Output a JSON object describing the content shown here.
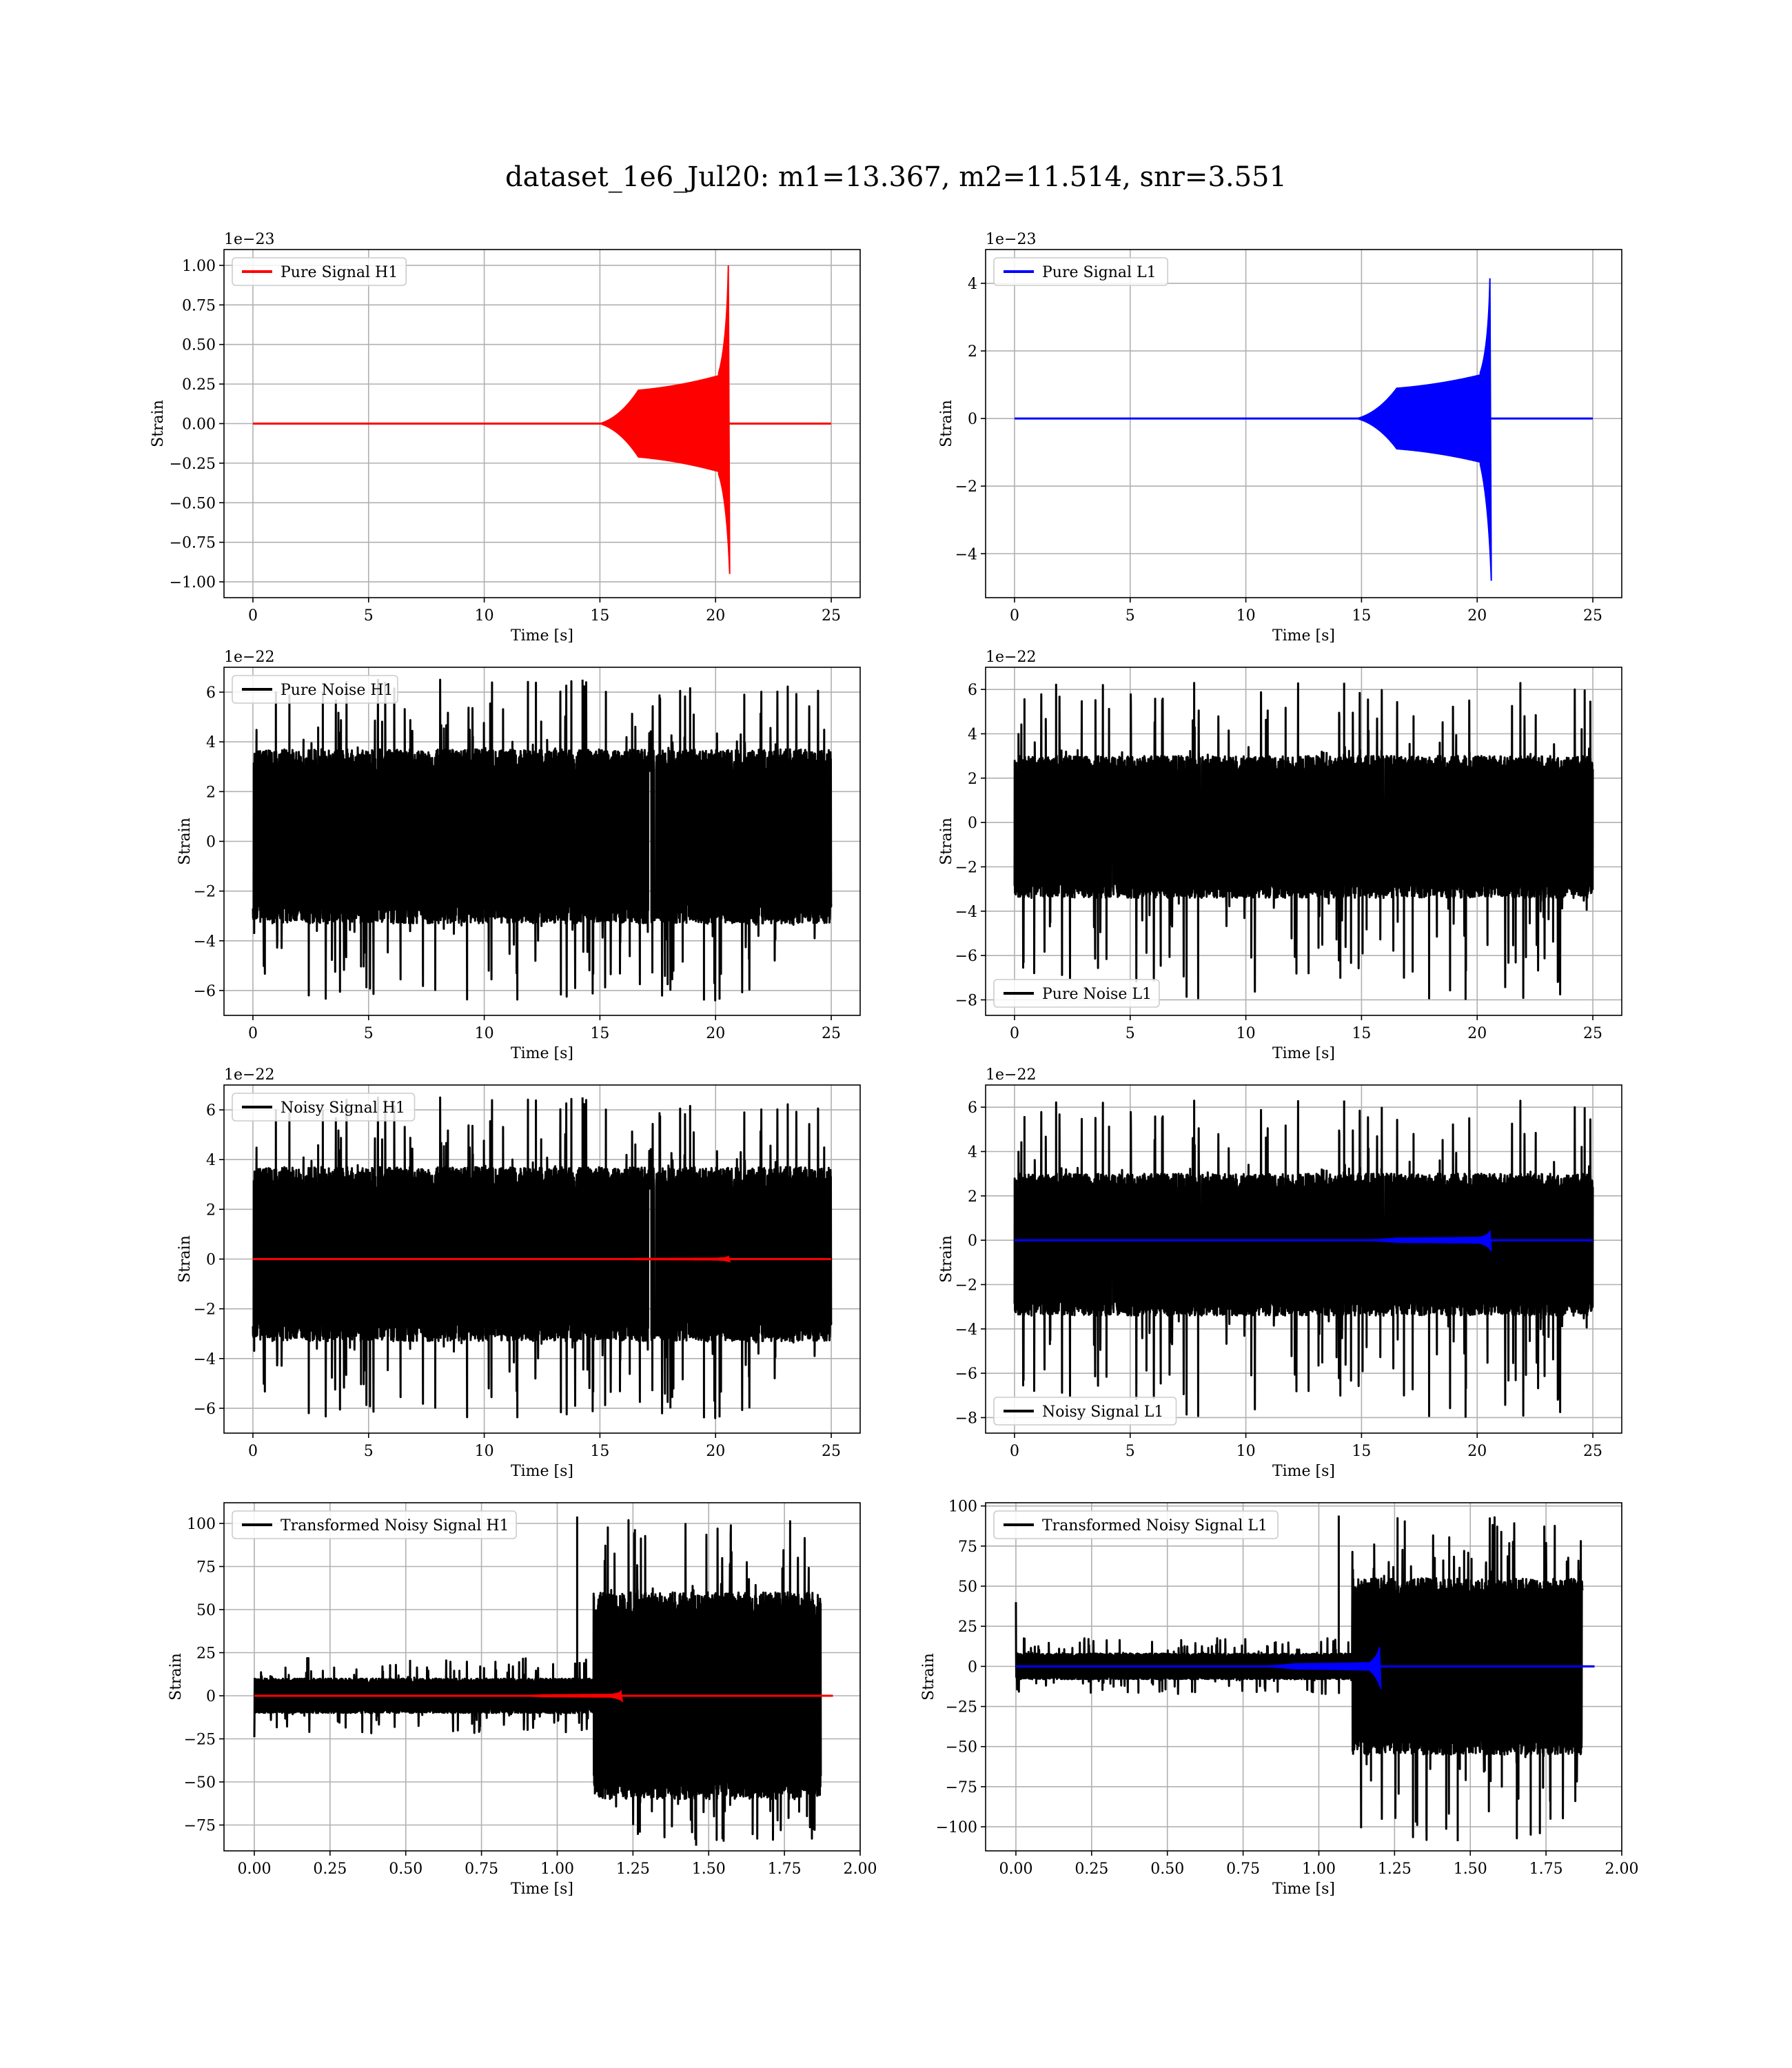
{
  "figure": {
    "title": "dataset_1e6_Jul20: m1=13.367, m2=11.514, snr=3.551"
  },
  "chart_data": [
    {
      "id": "pure-signal-h1",
      "type": "line",
      "xlabel": "Time [s]",
      "ylabel": "Strain",
      "offset_label": "1e−23",
      "xlim": [
        -1.25,
        26.25
      ],
      "ylim": [
        -1.1,
        1.1
      ],
      "xticks": [
        0,
        5,
        10,
        15,
        20,
        25
      ],
      "xtick_labels": [
        "0",
        "5",
        "10",
        "15",
        "20",
        "25"
      ],
      "yticks": [
        1.0,
        0.75,
        0.5,
        0.25,
        0.0,
        -0.25,
        -0.5,
        -0.75,
        -1.0
      ],
      "ytick_labels": [
        "1.00",
        "0.75",
        "0.50",
        "0.25",
        "0.00",
        "−0.25",
        "−0.50",
        "−0.75",
        "−1.00"
      ],
      "grid": true,
      "legend": {
        "position": "upper left"
      },
      "series": [
        {
          "name": "Pure Signal H1",
          "color": "#ff0000",
          "kind": "chirp",
          "t_start": 0,
          "t_end": 25,
          "t_merger": 20.55,
          "onset": 15.0,
          "plateau": 0.2,
          "peak_pos": 1.0,
          "peak_neg": -0.95
        }
      ]
    },
    {
      "id": "pure-signal-l1",
      "type": "line",
      "xlabel": "Time [s]",
      "ylabel": "Strain",
      "offset_label": "1e−23",
      "xlim": [
        -1.25,
        26.25
      ],
      "ylim": [
        -5.3,
        5.0
      ],
      "xticks": [
        0,
        5,
        10,
        15,
        20,
        25
      ],
      "xtick_labels": [
        "0",
        "5",
        "10",
        "15",
        "20",
        "25"
      ],
      "yticks": [
        4,
        2,
        0,
        -2,
        -4
      ],
      "ytick_labels": [
        "4",
        "2",
        "0",
        "−2",
        "−4"
      ],
      "grid": true,
      "legend": {
        "position": "upper left"
      },
      "series": [
        {
          "name": "Pure Signal L1",
          "color": "#0000ff",
          "kind": "chirp",
          "t_start": 0,
          "t_end": 25,
          "t_merger": 20.55,
          "onset": 14.8,
          "plateau": 0.85,
          "peak_pos": 4.15,
          "peak_neg": -4.8
        }
      ]
    },
    {
      "id": "pure-noise-h1",
      "type": "line",
      "xlabel": "Time [s]",
      "ylabel": "Strain",
      "offset_label": "1e−22",
      "xlim": [
        -1.25,
        26.25
      ],
      "ylim": [
        -7.0,
        7.0
      ],
      "xticks": [
        0,
        5,
        10,
        15,
        20,
        25
      ],
      "xtick_labels": [
        "0",
        "5",
        "10",
        "15",
        "20",
        "25"
      ],
      "yticks": [
        6,
        4,
        2,
        0,
        -2,
        -4,
        -6
      ],
      "ytick_labels": [
        "6",
        "4",
        "2",
        "0",
        "−2",
        "−4",
        "−6"
      ],
      "grid": true,
      "legend": {
        "position": "upper left"
      },
      "series": [
        {
          "name": "Pure Noise H1",
          "color": "#000000",
          "kind": "noise",
          "t_start": 0,
          "t_end": 25,
          "band": [
            -3.3,
            3.7
          ],
          "spike_max": 6.5,
          "spike_min": -6.4,
          "seed": 11
        }
      ]
    },
    {
      "id": "pure-noise-l1",
      "type": "line",
      "xlabel": "Time [s]",
      "ylabel": "Strain",
      "offset_label": "1e−22",
      "xlim": [
        -1.25,
        26.25
      ],
      "ylim": [
        -8.7,
        7.0
      ],
      "xticks": [
        0,
        5,
        10,
        15,
        20,
        25
      ],
      "xtick_labels": [
        "0",
        "5",
        "10",
        "15",
        "20",
        "25"
      ],
      "yticks": [
        6,
        4,
        2,
        0,
        -2,
        -4,
        -6,
        -8
      ],
      "ytick_labels": [
        "6",
        "4",
        "2",
        "0",
        "−2",
        "−4",
        "−6",
        "−8"
      ],
      "grid": true,
      "legend": {
        "position": "lower left"
      },
      "series": [
        {
          "name": "Pure Noise L1",
          "color": "#000000",
          "kind": "noise",
          "t_start": 0,
          "t_end": 25,
          "band": [
            -3.4,
            3.0
          ],
          "spike_max": 6.3,
          "spike_min": -8.0,
          "seed": 23
        }
      ]
    },
    {
      "id": "noisy-signal-h1",
      "type": "line",
      "xlabel": "Time [s]",
      "ylabel": "Strain",
      "offset_label": "1e−22",
      "xlim": [
        -1.25,
        26.25
      ],
      "ylim": [
        -7.0,
        7.0
      ],
      "xticks": [
        0,
        5,
        10,
        15,
        20,
        25
      ],
      "xtick_labels": [
        "0",
        "5",
        "10",
        "15",
        "20",
        "25"
      ],
      "yticks": [
        6,
        4,
        2,
        0,
        -2,
        -4,
        -6
      ],
      "ytick_labels": [
        "6",
        "4",
        "2",
        "0",
        "−2",
        "−4",
        "−6"
      ],
      "grid": true,
      "legend": {
        "position": "upper left"
      },
      "series": [
        {
          "name": "Noisy Signal H1",
          "color": "#000000",
          "kind": "noise",
          "t_start": 0,
          "t_end": 25,
          "band": [
            -3.3,
            3.7
          ],
          "spike_max": 6.5,
          "spike_min": -6.4,
          "seed": 11
        },
        {
          "color": "#ff0000",
          "kind": "chirp",
          "t_start": 0,
          "t_end": 25,
          "t_merger": 20.55,
          "onset": 15.0,
          "plateau": 0.02,
          "peak_pos": 0.1,
          "peak_neg": -0.1
        }
      ]
    },
    {
      "id": "noisy-signal-l1",
      "type": "line",
      "xlabel": "Time [s]",
      "ylabel": "Strain",
      "offset_label": "1e−22",
      "xlim": [
        -1.25,
        26.25
      ],
      "ylim": [
        -8.7,
        7.0
      ],
      "xticks": [
        0,
        5,
        10,
        15,
        20,
        25
      ],
      "xtick_labels": [
        "0",
        "5",
        "10",
        "15",
        "20",
        "25"
      ],
      "yticks": [
        6,
        4,
        2,
        0,
        -2,
        -4,
        -6,
        -8
      ],
      "ytick_labels": [
        "6",
        "4",
        "2",
        "0",
        "−2",
        "−4",
        "−6",
        "−8"
      ],
      "grid": true,
      "legend": {
        "position": "lower left"
      },
      "series": [
        {
          "name": "Noisy Signal L1",
          "color": "#000000",
          "kind": "noise",
          "t_start": 0,
          "t_end": 25,
          "band": [
            -3.4,
            3.0
          ],
          "spike_max": 6.3,
          "spike_min": -8.0,
          "seed": 23
        },
        {
          "color": "#0000ff",
          "kind": "chirp",
          "t_start": 0,
          "t_end": 25,
          "t_merger": 20.55,
          "onset": 14.8,
          "plateau": 0.085,
          "peak_pos": 0.42,
          "peak_neg": -0.48
        }
      ]
    },
    {
      "id": "transformed-noisy-signal-h1",
      "type": "line",
      "xlabel": "Time [s]",
      "ylabel": "Strain",
      "offset_label": "",
      "xlim": [
        -0.1,
        2.0
      ],
      "ylim": [
        -90,
        112
      ],
      "xticks": [
        0.0,
        0.25,
        0.5,
        0.75,
        1.0,
        1.25,
        1.5,
        1.75,
        2.0
      ],
      "xtick_labels": [
        "0.00",
        "0.25",
        "0.50",
        "0.75",
        "1.00",
        "1.25",
        "1.50",
        "1.75",
        "2.00"
      ],
      "yticks": [
        100,
        75,
        50,
        25,
        0,
        -25,
        -50,
        -75
      ],
      "ytick_labels": [
        "100",
        "75",
        "50",
        "25",
        "0",
        "−25",
        "−50",
        "−75"
      ],
      "grid": true,
      "legend": {
        "position": "upper left"
      },
      "series": [
        {
          "name": "Transformed Noisy Signal H1",
          "color": "#000000",
          "kind": "transformed",
          "t_start": 0,
          "t_end": 1.91,
          "step_t": 1.12,
          "quiet_band": [
            -10,
            10
          ],
          "loud_band": [
            -60,
            60
          ],
          "spike_max": 104,
          "spike_min": -87,
          "t_stop": 1.87,
          "first_dip": -24,
          "seed": 31
        },
        {
          "color": "#ff0000",
          "kind": "chirp",
          "t_start": 0,
          "t_end": 1.91,
          "t_merger": 1.21,
          "onset": 0.85,
          "plateau": 0.5,
          "peak_pos": 2.5,
          "peak_neg": -3.0
        }
      ]
    },
    {
      "id": "transformed-noisy-signal-l1",
      "type": "line",
      "xlabel": "Time [s]",
      "ylabel": "Strain",
      "offset_label": "",
      "xlim": [
        -0.1,
        2.0
      ],
      "ylim": [
        -115,
        102
      ],
      "xticks": [
        0.0,
        0.25,
        0.5,
        0.75,
        1.0,
        1.25,
        1.5,
        1.75,
        2.0
      ],
      "xtick_labels": [
        "0.00",
        "0.25",
        "0.50",
        "0.75",
        "1.00",
        "1.25",
        "1.50",
        "1.75",
        "2.00"
      ],
      "yticks": [
        100,
        75,
        50,
        25,
        0,
        -25,
        -50,
        -75,
        -100
      ],
      "ytick_labels": [
        "100",
        "75",
        "50",
        "25",
        "0",
        "−25",
        "−50",
        "−75",
        "−100"
      ],
      "grid": true,
      "legend": {
        "position": "upper left"
      },
      "series": [
        {
          "name": "Transformed Noisy Signal L1",
          "color": "#000000",
          "kind": "transformed",
          "t_start": 0,
          "t_end": 1.91,
          "step_t": 1.11,
          "quiet_band": [
            -8,
            8
          ],
          "loud_band": [
            -55,
            55
          ],
          "spike_max": 94,
          "spike_min": -109,
          "t_stop": 1.87,
          "first_dip": 40,
          "seed": 47
        },
        {
          "color": "#0000ff",
          "kind": "chirp",
          "t_start": 0,
          "t_end": 1.91,
          "t_merger": 1.2,
          "onset": 0.8,
          "plateau": 1.5,
          "peak_pos": 12,
          "peak_neg": -14
        }
      ]
    }
  ]
}
